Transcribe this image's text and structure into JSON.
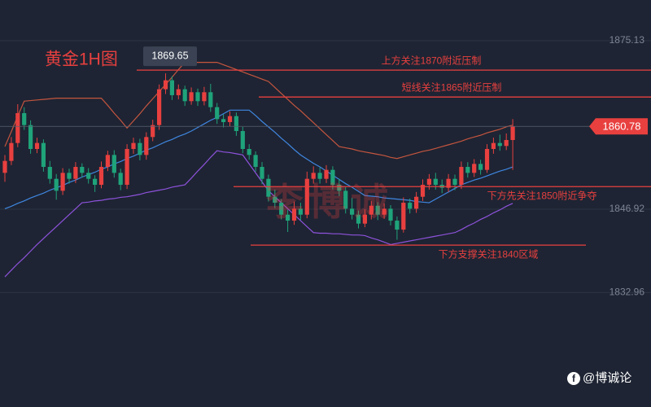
{
  "chart_data": {
    "type": "candlestick",
    "title": "黄金1H图",
    "watermark": "李博诚",
    "credit": "@博诚论",
    "up_color": "#e8403f",
    "down_color": "#1fa37a",
    "ylim": [
      1813.8,
      1881.94
    ],
    "yticks": [
      1875.13,
      1846.92,
      1832.96
    ],
    "grid": true,
    "candles": [
      [
        1853,
        1856,
        1851.5,
        1855
      ],
      [
        1855,
        1859,
        1854.3,
        1858
      ],
      [
        1858,
        1864.5,
        1857.3,
        1863
      ],
      [
        1863,
        1864,
        1860.2,
        1861
      ],
      [
        1861,
        1861.8,
        1856.2,
        1857
      ],
      [
        1857,
        1858.9,
        1856.3,
        1858
      ],
      [
        1858,
        1858.6,
        1853.2,
        1854
      ],
      [
        1854,
        1855,
        1851.2,
        1852
      ],
      [
        1852,
        1852.8,
        1848.5,
        1850
      ],
      [
        1850,
        1853.8,
        1849.3,
        1853
      ],
      [
        1853,
        1853.7,
        1851.2,
        1852
      ],
      [
        1852,
        1854.8,
        1851.3,
        1854
      ],
      [
        1854,
        1854.6,
        1852.2,
        1853
      ],
      [
        1853,
        1853.8,
        1851.2,
        1852
      ],
      [
        1852,
        1852.6,
        1849.8,
        1851
      ],
      [
        1851,
        1854.9,
        1850.4,
        1854
      ],
      [
        1854,
        1856.7,
        1853.3,
        1856
      ],
      [
        1856,
        1856.8,
        1852.2,
        1853
      ],
      [
        1853,
        1853.7,
        1850.1,
        1851
      ],
      [
        1851,
        1857.8,
        1850.3,
        1857
      ],
      [
        1857,
        1858.9,
        1856.2,
        1858
      ],
      [
        1858,
        1858.7,
        1855.1,
        1856
      ],
      [
        1856,
        1859.8,
        1855.2,
        1859
      ],
      [
        1859,
        1861.9,
        1858.3,
        1861
      ],
      [
        1861,
        1867.8,
        1860.2,
        1867
      ],
      [
        1867,
        1869.65,
        1866.2,
        1868.5
      ],
      [
        1868.5,
        1869.2,
        1865.2,
        1866
      ],
      [
        1866,
        1867.8,
        1865.3,
        1867
      ],
      [
        1867,
        1867.6,
        1864.2,
        1865
      ],
      [
        1865,
        1867.3,
        1864.4,
        1866.5
      ],
      [
        1866.5,
        1867.1,
        1864.2,
        1865
      ],
      [
        1865,
        1867.4,
        1864.3,
        1866.5
      ],
      [
        1866.5,
        1867.9,
        1863.2,
        1864
      ],
      [
        1864,
        1864.7,
        1861.2,
        1862
      ],
      [
        1862,
        1862.8,
        1860.6,
        1861.5
      ],
      [
        1861.5,
        1863.3,
        1860.8,
        1862.5
      ],
      [
        1862.5,
        1863.1,
        1859.2,
        1860
      ],
      [
        1860,
        1860.7,
        1856.3,
        1857
      ],
      [
        1857,
        1857.8,
        1855.2,
        1856
      ],
      [
        1856,
        1856.6,
        1853.2,
        1854
      ],
      [
        1854,
        1854.8,
        1851.1,
        1852
      ],
      [
        1852,
        1852.7,
        1848.2,
        1849
      ],
      [
        1849,
        1850.2,
        1847.1,
        1848
      ],
      [
        1848,
        1848.6,
        1845.2,
        1846
      ],
      [
        1846,
        1846.8,
        1843.1,
        1845
      ],
      [
        1845,
        1848.2,
        1844.3,
        1847
      ],
      [
        1847,
        1848,
        1845.1,
        1846
      ],
      [
        1846,
        1853.2,
        1845.4,
        1852
      ],
      [
        1852,
        1854.1,
        1851.2,
        1853
      ],
      [
        1853,
        1853.9,
        1851.2,
        1852
      ],
      [
        1852,
        1854.3,
        1851.3,
        1853.5
      ],
      [
        1853.5,
        1854.1,
        1850.2,
        1851
      ],
      [
        1851,
        1852,
        1849.1,
        1850
      ],
      [
        1850,
        1850.6,
        1846.2,
        1847
      ],
      [
        1847,
        1848.8,
        1845.2,
        1846
      ],
      [
        1846,
        1846.7,
        1843.7,
        1844.5
      ],
      [
        1844.5,
        1846.9,
        1843.9,
        1846
      ],
      [
        1846,
        1848.3,
        1845.2,
        1847.5
      ],
      [
        1847.5,
        1848.1,
        1845.1,
        1846
      ],
      [
        1846,
        1847.9,
        1845.3,
        1847
      ],
      [
        1847,
        1847.6,
        1844.2,
        1845
      ],
      [
        1845,
        1845.7,
        1841.8,
        1843.5
      ],
      [
        1843.5,
        1848.9,
        1843,
        1848
      ],
      [
        1848,
        1848.7,
        1846.2,
        1847
      ],
      [
        1847,
        1849.8,
        1846.3,
        1849
      ],
      [
        1849,
        1851.9,
        1848.3,
        1851
      ],
      [
        1851,
        1852.8,
        1850.2,
        1852
      ],
      [
        1852,
        1853,
        1850.2,
        1851
      ],
      [
        1851,
        1851.9,
        1849.6,
        1850.5
      ],
      [
        1850.5,
        1852.8,
        1849.8,
        1852
      ],
      [
        1852,
        1852.7,
        1850.1,
        1851
      ],
      [
        1851,
        1854.9,
        1850.3,
        1854
      ],
      [
        1854,
        1854.8,
        1852.2,
        1853
      ],
      [
        1853,
        1855.3,
        1852.3,
        1854.5
      ],
      [
        1854.5,
        1855.2,
        1852.7,
        1853.5
      ],
      [
        1853.5,
        1857.8,
        1853,
        1857
      ],
      [
        1857,
        1858.9,
        1856.2,
        1858
      ],
      [
        1858,
        1859.4,
        1856.7,
        1857.5
      ],
      [
        1857.5,
        1859.6,
        1856.8,
        1858.5
      ],
      [
        1858.5,
        1862,
        1853.5,
        1860.78
      ]
    ],
    "bands": [
      {
        "color": "#c4553f",
        "values": [
          1857.4,
          1859.9,
          1862.5,
          1865,
          1865.1,
          1865.2,
          1865.3,
          1865.4,
          1865.5,
          1865.5,
          1865.5,
          1865.5,
          1865.5,
          1865.5,
          1865.5,
          1865.5,
          1864.3,
          1863,
          1861.8,
          1860.5,
          1861.7,
          1862.9,
          1864.2,
          1865.4,
          1866.6,
          1867.8,
          1869,
          1870.3,
          1871.5,
          1871.5,
          1871.5,
          1871.5,
          1871.5,
          1871.5,
          1871.1,
          1870.7,
          1870.3,
          1869.9,
          1869.5,
          1869.1,
          1868.7,
          1868.3,
          1867.3,
          1866.3,
          1865.3,
          1864.3,
          1863.4,
          1862.4,
          1861.4,
          1860.4,
          1859.4,
          1858.4,
          1857.4,
          1857.2,
          1857,
          1856.7,
          1856.5,
          1856.3,
          1856.1,
          1855.9,
          1855.6,
          1855.4,
          1855.7,
          1856,
          1856.3,
          1856.6,
          1856.8,
          1857.1,
          1857.4,
          1857.7,
          1858,
          1858.3,
          1858.7,
          1859,
          1859.3,
          1859.7,
          1860,
          1860.3,
          1860.7,
          1861
        ]
      },
      {
        "color": "#3f86e0",
        "values": [
          1847,
          1847.4,
          1847.9,
          1848.3,
          1848.8,
          1849.2,
          1849.6,
          1850.1,
          1850.5,
          1850.9,
          1851.4,
          1851.8,
          1852.3,
          1852.7,
          1853.1,
          1853.6,
          1854,
          1854.5,
          1854.9,
          1855.4,
          1855.8,
          1856.3,
          1856.8,
          1857.2,
          1857.7,
          1858.2,
          1858.6,
          1859.1,
          1859.5,
          1860,
          1860.6,
          1861.2,
          1861.8,
          1862.3,
          1862.9,
          1863.5,
          1863.5,
          1863.5,
          1863.5,
          1862.6,
          1861.6,
          1860.7,
          1859.8,
          1858.8,
          1857.9,
          1856.9,
          1856,
          1855.3,
          1854.6,
          1854,
          1853.3,
          1852.6,
          1851.9,
          1851.2,
          1850.6,
          1849.9,
          1849.2,
          1849.1,
          1849,
          1848.8,
          1848.7,
          1848.6,
          1848.5,
          1848.4,
          1848.2,
          1848.1,
          1848,
          1848.6,
          1849.2,
          1849.8,
          1850.4,
          1851,
          1851.4,
          1851.8,
          1852.1,
          1852.5,
          1852.9,
          1853.3,
          1853.6,
          1854
        ]
      },
      {
        "color": "#8d52db",
        "values": [
          1835.6,
          1836.7,
          1837.8,
          1838.8,
          1839.9,
          1841,
          1842,
          1843,
          1844,
          1845,
          1846,
          1847,
          1848,
          1848.1,
          1848.3,
          1848.4,
          1848.6,
          1848.7,
          1848.9,
          1849,
          1849.2,
          1849.4,
          1849.7,
          1849.9,
          1850.1,
          1850.3,
          1850.6,
          1850.8,
          1851,
          1852.1,
          1853.3,
          1854.4,
          1855.6,
          1856.7,
          1856.5,
          1856.4,
          1856.2,
          1856,
          1854.5,
          1853,
          1851.5,
          1850,
          1849,
          1848,
          1847,
          1846,
          1845,
          1844,
          1843,
          1842.9,
          1842.9,
          1842.8,
          1842.8,
          1842.7,
          1842.6,
          1842.6,
          1842.5,
          1842.1,
          1841.8,
          1841.4,
          1841,
          1841.2,
          1841.4,
          1841.6,
          1841.8,
          1842,
          1842.2,
          1842.4,
          1842.6,
          1842.8,
          1843,
          1843.5,
          1844.1,
          1844.6,
          1845.2,
          1845.7,
          1846.3,
          1846.8,
          1847.4,
          1847.9
        ]
      }
    ],
    "levels": [
      {
        "label": "上方关注1870附近压制",
        "value": 1870.2,
        "color": "#e8403f"
      },
      {
        "label": "短线关注1865附近压制",
        "value": 1865.7,
        "color": "#e8403f"
      },
      {
        "label": "下方先关注1850附近争夺",
        "value": 1850.7,
        "color": "#e8403f"
      },
      {
        "label": "下方支撑关注1840区域",
        "value": 1840.9,
        "color": "#e8403f"
      }
    ]
  }
}
